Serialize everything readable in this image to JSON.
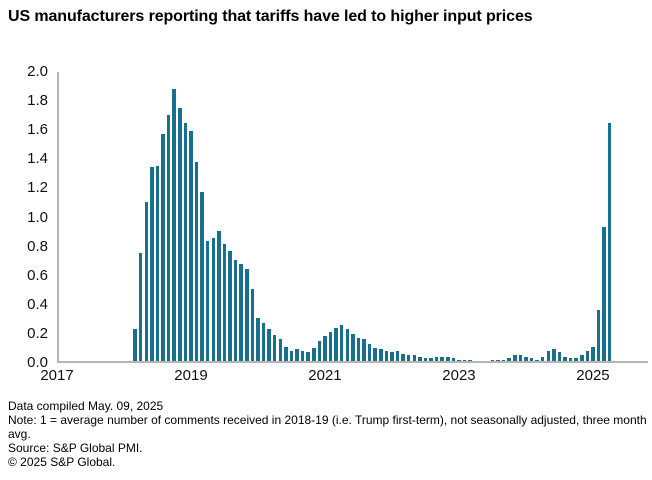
{
  "header": {
    "title": "US manufacturers reporting that tariffs have led to higher input prices"
  },
  "footer": {
    "compiled": "Data compiled May. 09, 2025",
    "note": "Note: 1 = average number of comments received in 2018-19 (i.e. Trump first-term), not seasonally adjusted, three month avg.",
    "source": "Source: S&P Global PMI.",
    "copyright": "© 2025 S&P Global."
  },
  "colors": {
    "bar": "#16708e",
    "axis_line": "#b5b5b5",
    "text": "#111111"
  },
  "chart_data": {
    "type": "bar",
    "title": "US manufacturers reporting that tariffs have led to higher input prices",
    "xlabel": "",
    "ylabel": "",
    "ylim": [
      0,
      2.0
    ],
    "grid": false,
    "legend": false,
    "y_tick_labels": [
      "0.0",
      "0.2",
      "0.4",
      "0.6",
      "0.8",
      "1.0",
      "1.2",
      "1.4",
      "1.6",
      "1.8",
      "2.0"
    ],
    "x_tick_labels": [
      "2017",
      "2019",
      "2021",
      "2023",
      "2025"
    ],
    "x_axis_note": "monthly data, x axis spans Jan 2017 to mid 2025, year ticks at January",
    "months": [
      "2018-03",
      "2018-04",
      "2018-05",
      "2018-06",
      "2018-07",
      "2018-08",
      "2018-09",
      "2018-10",
      "2018-11",
      "2018-12",
      "2019-01",
      "2019-02",
      "2019-03",
      "2019-04",
      "2019-05",
      "2019-06",
      "2019-07",
      "2019-08",
      "2019-09",
      "2019-10",
      "2019-11",
      "2019-12",
      "2020-01",
      "2020-02",
      "2020-03",
      "2020-04",
      "2020-05",
      "2020-06",
      "2020-07",
      "2020-08",
      "2020-09",
      "2020-10",
      "2020-11",
      "2020-12",
      "2021-01",
      "2021-02",
      "2021-03",
      "2021-04",
      "2021-05",
      "2021-06",
      "2021-07",
      "2021-08",
      "2021-09",
      "2021-10",
      "2021-11",
      "2021-12",
      "2022-01",
      "2022-02",
      "2022-03",
      "2022-04",
      "2022-05",
      "2022-06",
      "2022-07",
      "2022-08",
      "2022-09",
      "2022-10",
      "2022-11",
      "2022-12",
      "2023-01",
      "2023-02",
      "2023-03",
      "2023-04",
      "2023-05",
      "2023-06",
      "2023-07",
      "2023-08",
      "2023-09",
      "2023-10",
      "2023-11",
      "2023-12",
      "2024-01",
      "2024-02",
      "2024-03",
      "2024-04",
      "2024-05",
      "2024-06",
      "2024-07",
      "2024-08",
      "2024-09",
      "2024-10",
      "2024-11",
      "2024-12",
      "2025-01",
      "2025-02",
      "2025-03",
      "2025-04"
    ],
    "values": [
      0.22,
      0.75,
      1.1,
      1.34,
      1.35,
      1.57,
      1.7,
      1.88,
      1.75,
      1.65,
      1.59,
      1.38,
      1.17,
      0.83,
      0.85,
      0.9,
      0.81,
      0.76,
      0.7,
      0.67,
      0.64,
      0.5,
      0.3,
      0.26,
      0.22,
      0.18,
      0.15,
      0.1,
      0.07,
      0.08,
      0.07,
      0.06,
      0.09,
      0.14,
      0.17,
      0.2,
      0.23,
      0.25,
      0.22,
      0.19,
      0.16,
      0.15,
      0.12,
      0.09,
      0.08,
      0.07,
      0.06,
      0.07,
      0.05,
      0.04,
      0.04,
      0.03,
      0.02,
      0.02,
      0.03,
      0.03,
      0.03,
      0.02,
      0.01,
      0.01,
      0.01,
      0.0,
      0.0,
      0.0,
      0.01,
      0.01,
      0.01,
      0.02,
      0.04,
      0.04,
      0.03,
      0.02,
      0.01,
      0.03,
      0.07,
      0.08,
      0.06,
      0.03,
      0.02,
      0.02,
      0.04,
      0.07,
      0.1,
      0.35,
      0.93,
      1.65
    ]
  },
  "layout_note": "single bar chart, no legend, light gray L-shaped axes"
}
